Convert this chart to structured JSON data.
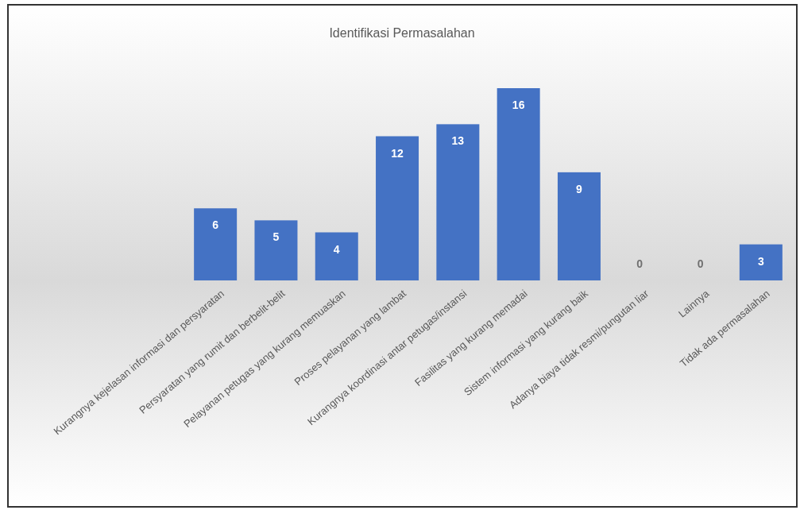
{
  "chart_data": {
    "type": "bar",
    "title": "Identifikasi Permasalahan",
    "categories": [
      "Kurangnya kejelasan informasi dan persyaratan",
      "Persyaratan yang rumit dan berbelit-belit",
      "Pelayanan petugas yang kurang memuaskan",
      "Proses pelayanan yang lambat",
      "Kurangnya koordinasi antar petugas/instansi",
      "Fasilitas yang kurang memadai",
      "Sistem informasi yang kurang baik",
      "Adanya biaya tidak resmi/pungutan liar",
      "Lainnya",
      "Tidak ada permasalahan"
    ],
    "values": [
      6,
      5,
      4,
      12,
      13,
      16,
      9,
      0,
      0,
      3
    ],
    "color": "#4472c4",
    "data_labels": true
  }
}
